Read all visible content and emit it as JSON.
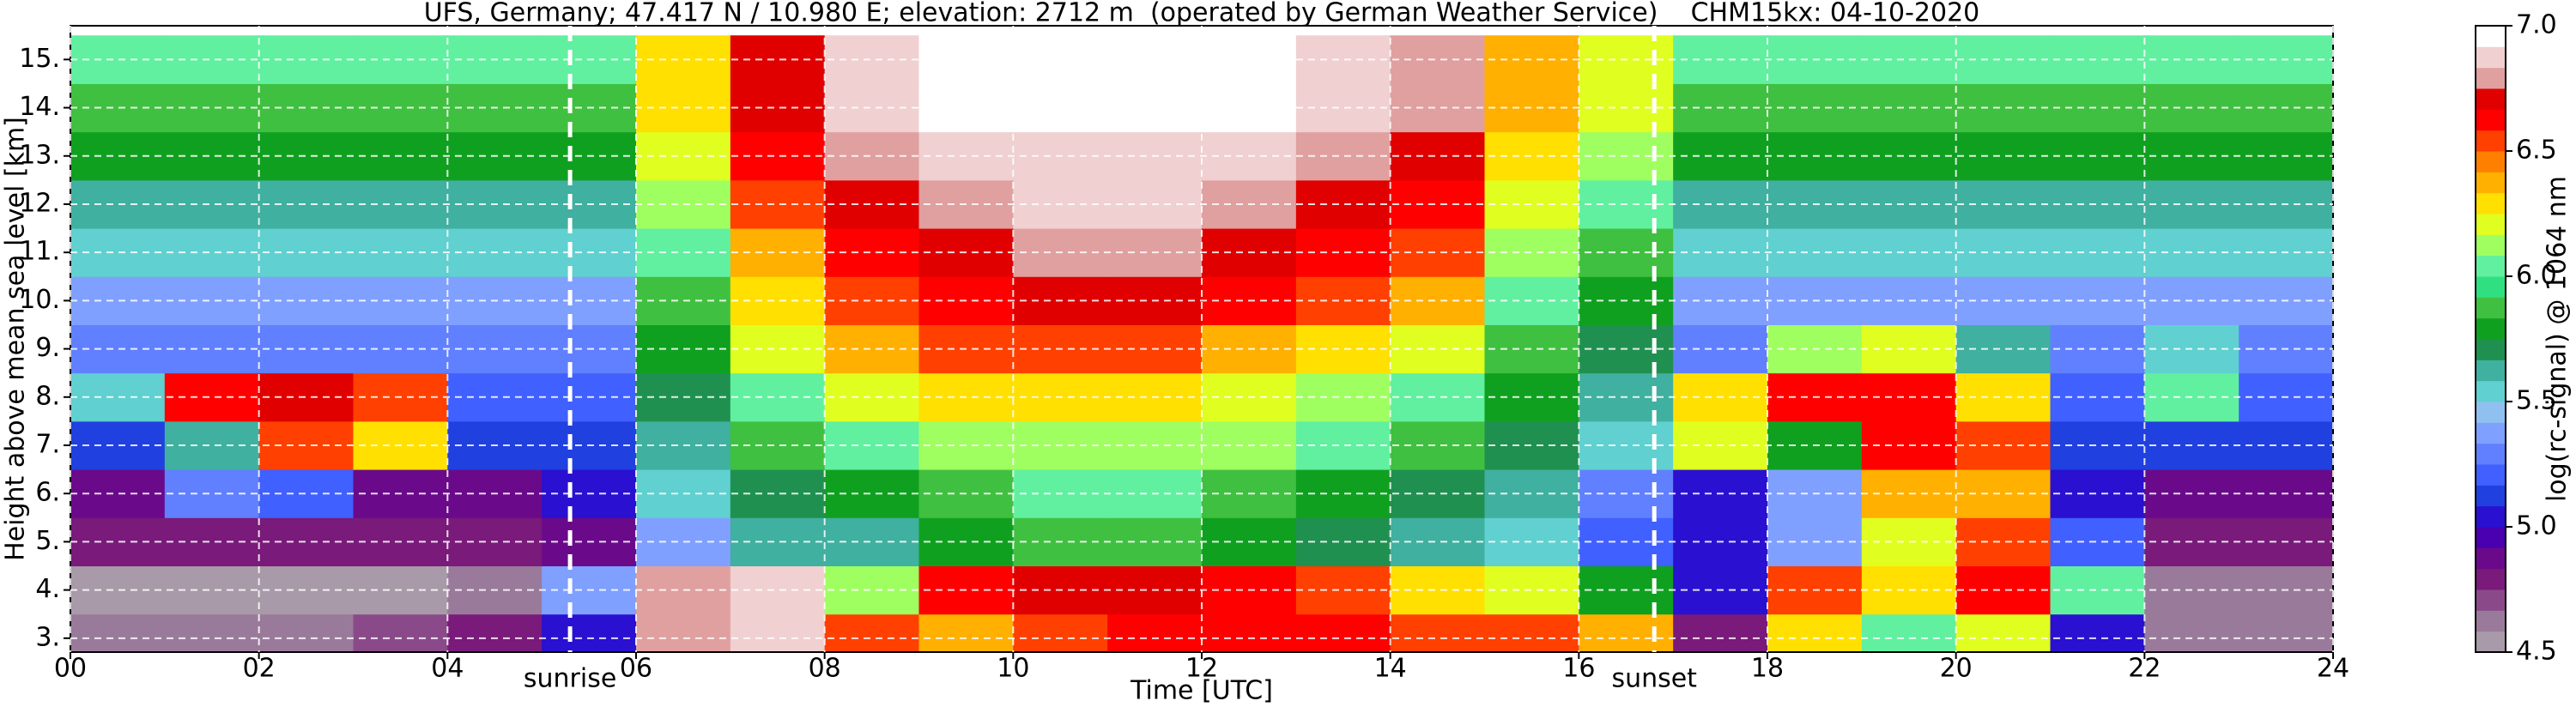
{
  "chart_data": {
    "type": "heatmap",
    "title": "UFS, Germany; 47.417 N / 10.980 E; elevation: 2712 m  (operated by German Weather Service)    CHM15kx: 04-10-2020",
    "x_label": "Time [UTC]",
    "y_label": "Height above mean sea level [km]",
    "colorbar_label": "log(rc-signal) @ 1064 nm",
    "xlim": [
      0,
      24
    ],
    "xticks": [
      {
        "value": 0,
        "label": "00"
      },
      {
        "value": 2,
        "label": "02"
      },
      {
        "value": 4,
        "label": "04"
      },
      {
        "value": 6,
        "label": "06"
      },
      {
        "value": 8,
        "label": "08"
      },
      10,
      12,
      14,
      16,
      18,
      20,
      22,
      24
    ],
    "ylim": [
      2.712,
      15.7
    ],
    "yticks": [
      {
        "value": 3,
        "label": "3."
      },
      {
        "value": 4,
        "label": "4."
      },
      {
        "value": 5,
        "label": "5."
      },
      {
        "value": 6,
        "label": "6."
      },
      {
        "value": 7,
        "label": "7."
      },
      {
        "value": 8,
        "label": "8."
      },
      {
        "value": 9,
        "label": "9."
      },
      {
        "value": 10,
        "label": "10."
      },
      {
        "value": 11,
        "label": "11."
      },
      {
        "value": 12,
        "label": "12."
      },
      {
        "value": 13,
        "label": "13."
      },
      {
        "value": 14,
        "label": "14."
      },
      {
        "value": 15,
        "label": "15."
      }
    ],
    "clim": [
      4.5,
      7.0
    ],
    "cticks": [
      4.5,
      {
        "value": 5,
        "label": "5.0"
      },
      5.5,
      {
        "value": 6,
        "label": "6.0"
      },
      6.5,
      {
        "value": 7,
        "label": "7.0"
      }
    ],
    "colormap": [
      "#a89aa8",
      "#9a7a9a",
      "#8a4a8a",
      "#7a1a7a",
      "#6a0a8a",
      "#4a00b0",
      "#2a10d0",
      "#2040e0",
      "#4060ff",
      "#6080ff",
      "#80a0ff",
      "#90c0f0",
      "#60d0d0",
      "#40b0a0",
      "#209050",
      "#10a020",
      "#40c040",
      "#30e080",
      "#60f0a0",
      "#a0ff60",
      "#e0ff20",
      "#ffe000",
      "#ffb000",
      "#ff8000",
      "#ff4000",
      "#ff0000",
      "#e00000",
      "#e0a0a0",
      "#f0d0d0",
      "#ffffff"
    ],
    "grid": true,
    "annotations": [
      {
        "text": "sunrise",
        "x": 5.3
      },
      {
        "text": "sunset",
        "x": 16.8
      }
    ],
    "x": [
      0.5,
      1.5,
      2.5,
      3.5,
      4.5,
      5.5,
      6.5,
      7.5,
      8.5,
      9.5,
      10.5,
      11.5,
      12.5,
      13.5,
      14.5,
      15.5,
      16.5,
      17.5,
      18.5,
      19.5,
      20.5,
      21.5,
      22.5,
      23.5
    ],
    "y": [
      3,
      4,
      5,
      6,
      7,
      8,
      9,
      10,
      11,
      12,
      13,
      14,
      15
    ],
    "z": [
      [
        4.6,
        4.6,
        4.6,
        4.7,
        4.8,
        5.0,
        6.8,
        6.9,
        6.5,
        6.4,
        6.5,
        6.6,
        6.6,
        6.6,
        6.5,
        6.5,
        6.4,
        4.8,
        6.3,
        6.0,
        6.2,
        5.0,
        4.6,
        4.6
      ],
      [
        4.5,
        4.5,
        4.5,
        4.5,
        4.6,
        5.4,
        6.8,
        6.9,
        6.1,
        6.6,
        6.7,
        6.7,
        6.6,
        6.5,
        6.3,
        6.2,
        5.8,
        5.0,
        6.5,
        6.3,
        6.6,
        6.0,
        4.6,
        4.6
      ],
      [
        4.8,
        4.8,
        4.8,
        4.8,
        4.8,
        4.9,
        5.4,
        5.6,
        5.6,
        5.8,
        5.9,
        5.9,
        5.8,
        5.7,
        5.6,
        5.5,
        5.2,
        5.0,
        5.4,
        6.2,
        6.5,
        5.2,
        4.8,
        4.8
      ],
      [
        4.9,
        5.3,
        5.2,
        4.9,
        4.9,
        5.0,
        5.5,
        5.7,
        5.8,
        5.9,
        6.0,
        6.0,
        5.9,
        5.8,
        5.7,
        5.6,
        5.3,
        5.0,
        5.4,
        6.4,
        6.4,
        5.0,
        4.9,
        4.9
      ],
      [
        5.1,
        5.6,
        6.5,
        6.3,
        5.1,
        5.1,
        5.6,
        5.9,
        6.0,
        6.1,
        6.1,
        6.1,
        6.1,
        6.0,
        5.9,
        5.7,
        5.5,
        6.2,
        5.8,
        6.6,
        6.5,
        5.1,
        5.1,
        5.1
      ],
      [
        5.5,
        6.6,
        6.7,
        6.5,
        5.2,
        5.2,
        5.7,
        6.0,
        6.2,
        6.3,
        6.3,
        6.3,
        6.2,
        6.1,
        6.0,
        5.8,
        5.6,
        6.3,
        6.6,
        6.6,
        6.3,
        5.2,
        6.0,
        5.2
      ],
      [
        5.3,
        5.3,
        5.3,
        5.3,
        5.3,
        5.3,
        5.8,
        6.2,
        6.4,
        6.5,
        6.5,
        6.5,
        6.4,
        6.3,
        6.2,
        5.9,
        5.7,
        5.3,
        6.1,
        6.2,
        5.6,
        5.3,
        5.5,
        5.3
      ],
      [
        5.4,
        5.4,
        5.4,
        5.4,
        5.4,
        5.4,
        5.9,
        6.3,
        6.5,
        6.6,
        6.7,
        6.7,
        6.6,
        6.5,
        6.4,
        6.0,
        5.8,
        5.4,
        5.4,
        5.4,
        5.4,
        5.4,
        5.4,
        5.4
      ],
      [
        5.5,
        5.5,
        5.5,
        5.5,
        5.5,
        5.5,
        6.0,
        6.4,
        6.6,
        6.7,
        6.8,
        6.8,
        6.7,
        6.6,
        6.5,
        6.1,
        5.9,
        5.5,
        5.5,
        5.5,
        5.5,
        5.5,
        5.5,
        5.5
      ],
      [
        5.6,
        5.6,
        5.6,
        5.6,
        5.6,
        5.6,
        6.1,
        6.5,
        6.7,
        6.8,
        6.9,
        6.9,
        6.8,
        6.7,
        6.6,
        6.2,
        6.0,
        5.6,
        5.6,
        5.6,
        5.6,
        5.6,
        5.6,
        5.6
      ],
      [
        5.8,
        5.8,
        5.8,
        5.8,
        5.8,
        5.8,
        6.2,
        6.6,
        6.8,
        6.9,
        6.9,
        6.9,
        6.9,
        6.8,
        6.7,
        6.3,
        6.1,
        5.8,
        5.8,
        5.8,
        5.8,
        5.8,
        5.8,
        5.8
      ],
      [
        5.9,
        5.9,
        5.9,
        5.9,
        5.9,
        5.9,
        6.3,
        6.7,
        6.9,
        7.0,
        7.0,
        7.0,
        7.0,
        6.9,
        6.8,
        6.4,
        6.2,
        5.9,
        5.9,
        5.9,
        5.9,
        5.9,
        5.9,
        5.9
      ],
      [
        6.0,
        6.0,
        6.0,
        6.0,
        6.0,
        6.0,
        6.3,
        6.7,
        6.9,
        7.0,
        7.0,
        7.0,
        7.0,
        6.9,
        6.8,
        6.4,
        6.2,
        6.0,
        6.0,
        6.0,
        6.0,
        6.0,
        6.0,
        6.0
      ]
    ]
  }
}
